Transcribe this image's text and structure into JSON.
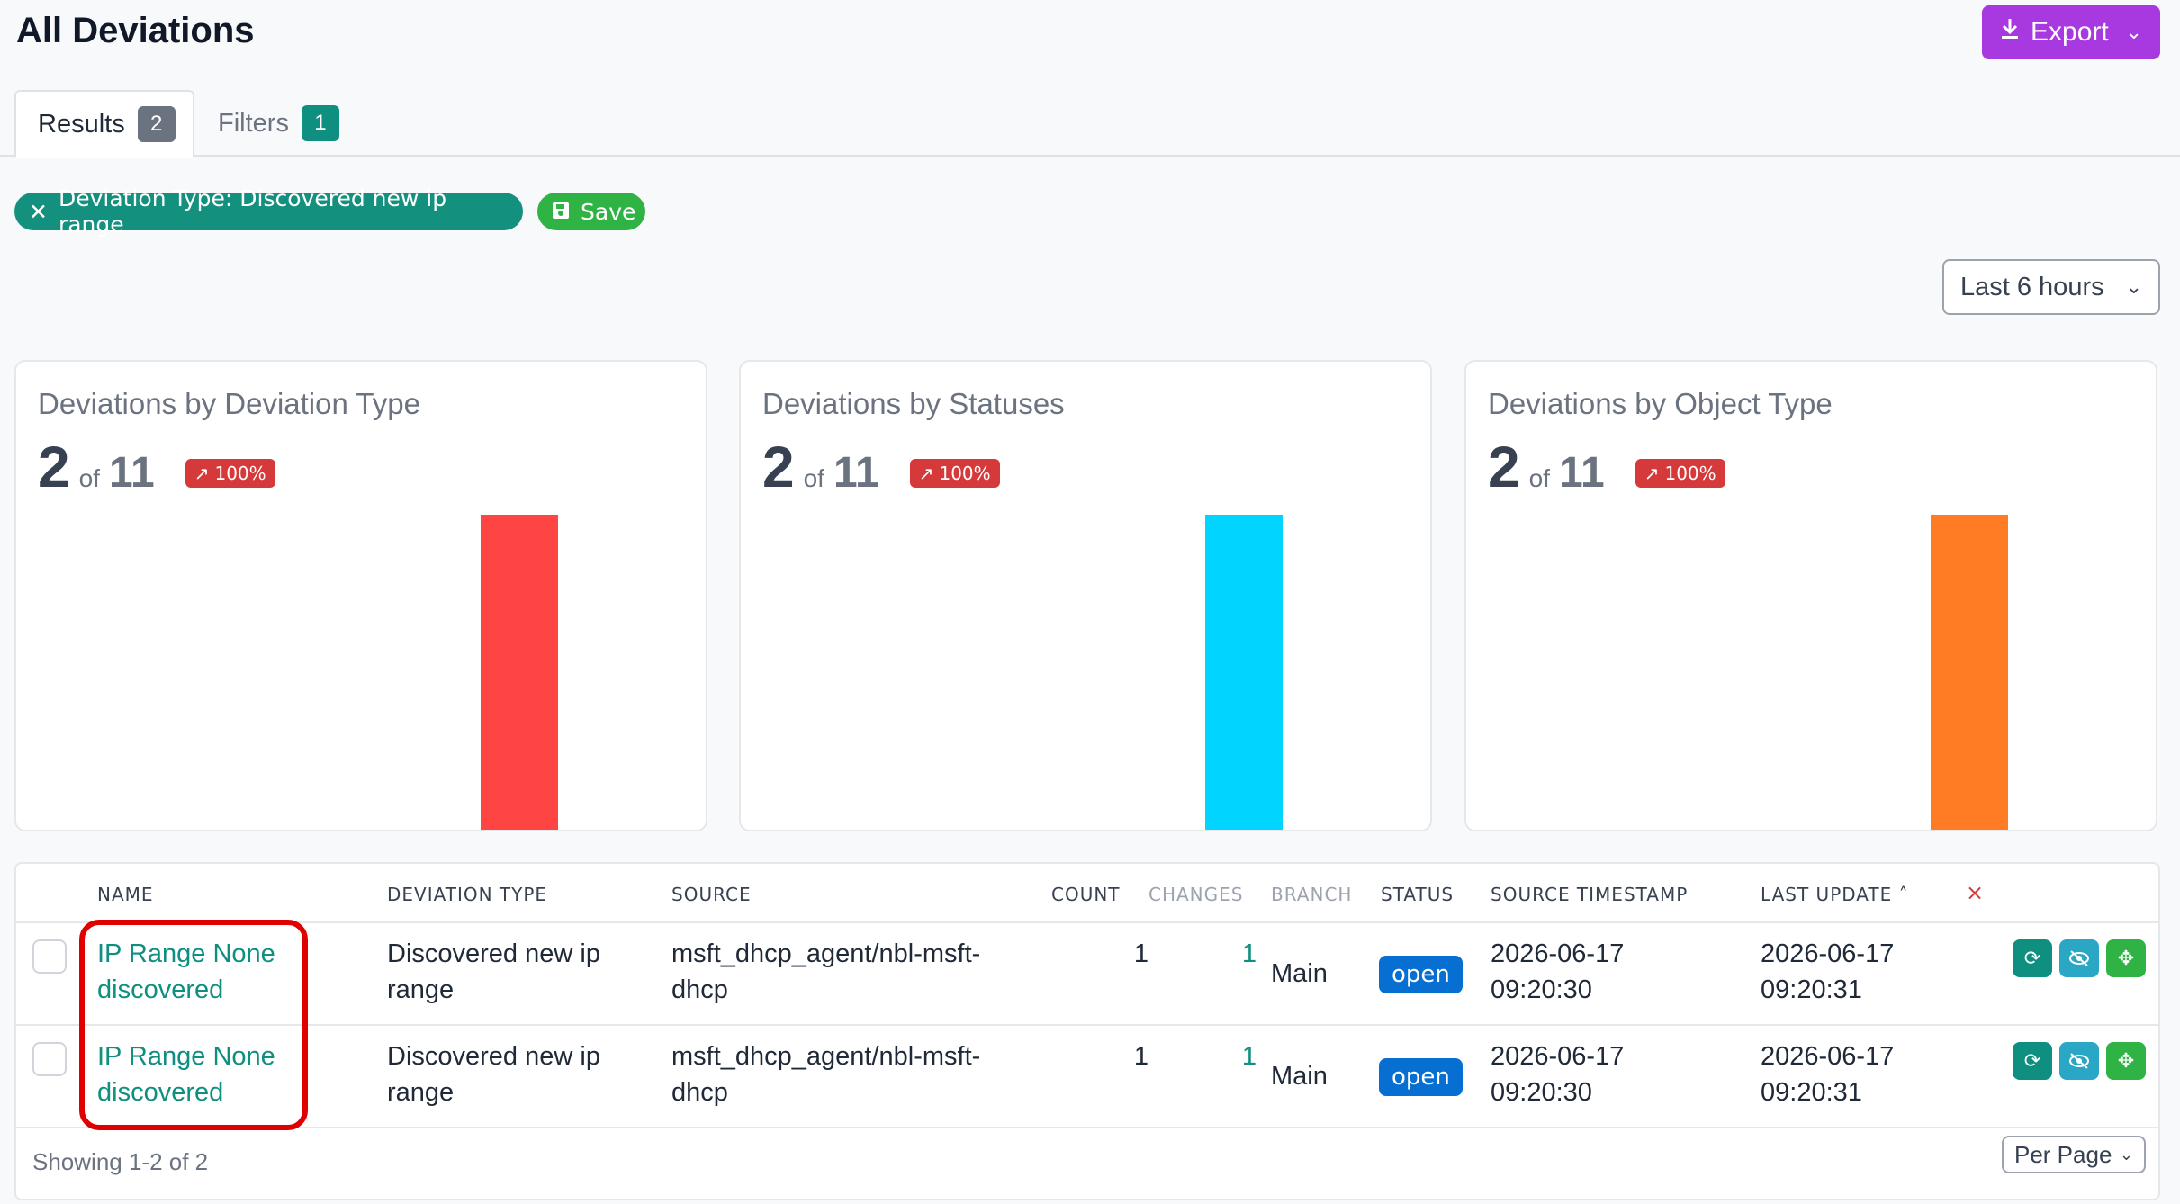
{
  "header": {
    "title": "All Deviations",
    "export_label": "Export"
  },
  "tabs": [
    {
      "label": "Results",
      "count": "2"
    },
    {
      "label": "Filters",
      "count": "1"
    }
  ],
  "filters": {
    "active_filter": "Deviation Type: Discovered new ip range",
    "save_label": "Save"
  },
  "time_range": "Last 6 hours",
  "cards": [
    {
      "title": "Deviations by Deviation Type",
      "value": "2",
      "of": "of",
      "total": "11",
      "trend": "100%",
      "bar_color": "#ff4444"
    },
    {
      "title": "Deviations by Statuses",
      "value": "2",
      "of": "of",
      "total": "11",
      "trend": "100%",
      "bar_color": "#00d4ff"
    },
    {
      "title": "Deviations by Object Type",
      "value": "2",
      "of": "of",
      "total": "11",
      "trend": "100%",
      "bar_color": "#ff7b24"
    }
  ],
  "chart_data": [
    {
      "type": "bar",
      "values": [
        2
      ],
      "ylim": [
        0,
        2
      ]
    },
    {
      "type": "bar",
      "values": [
        2
      ],
      "ylim": [
        0,
        2
      ]
    },
    {
      "type": "bar",
      "values": [
        2
      ],
      "ylim": [
        0,
        2
      ]
    }
  ],
  "table": {
    "columns": {
      "name": "NAME",
      "deviation_type": "DEVIATION TYPE",
      "source": "SOURCE",
      "count": "COUNT",
      "changes": "CHANGES",
      "branch": "BRANCH",
      "status": "STATUS",
      "source_timestamp": "SOURCE TIMESTAMP",
      "last_update": "LAST UPDATE",
      "clear": "×"
    },
    "rows": [
      {
        "name_1": "IP Range None",
        "name_2": "discovered",
        "type_1": "Discovered new ip",
        "type_2": "range",
        "source_1": "msft_dhcp_agent/nbl-msft-",
        "source_2": "dhcp",
        "count": "1",
        "changes": "1",
        "branch": "Main",
        "status": "open",
        "src_date": "2026-06-17",
        "src_time": "09:20:30",
        "upd_date": "2026-06-17",
        "upd_time": "09:20:31"
      },
      {
        "name_1": "IP Range None",
        "name_2": "discovered",
        "type_1": "Discovered new ip",
        "type_2": "range",
        "source_1": "msft_dhcp_agent/nbl-msft-",
        "source_2": "dhcp",
        "count": "1",
        "changes": "1",
        "branch": "Main",
        "status": "open",
        "src_date": "2026-06-17",
        "src_time": "09:20:30",
        "upd_date": "2026-06-17",
        "upd_time": "09:20:31"
      }
    ],
    "footer": "Showing 1-2 of 2",
    "per_page_label": "Per Page"
  },
  "icons": {
    "export": "download-icon",
    "filter_remove": "close-icon",
    "save": "floppy-icon",
    "trend": "trend-up-arrow-icon",
    "sort": "sort-asc-icon",
    "actions": [
      "refresh-icon",
      "eye-off-icon",
      "move-icon"
    ]
  }
}
